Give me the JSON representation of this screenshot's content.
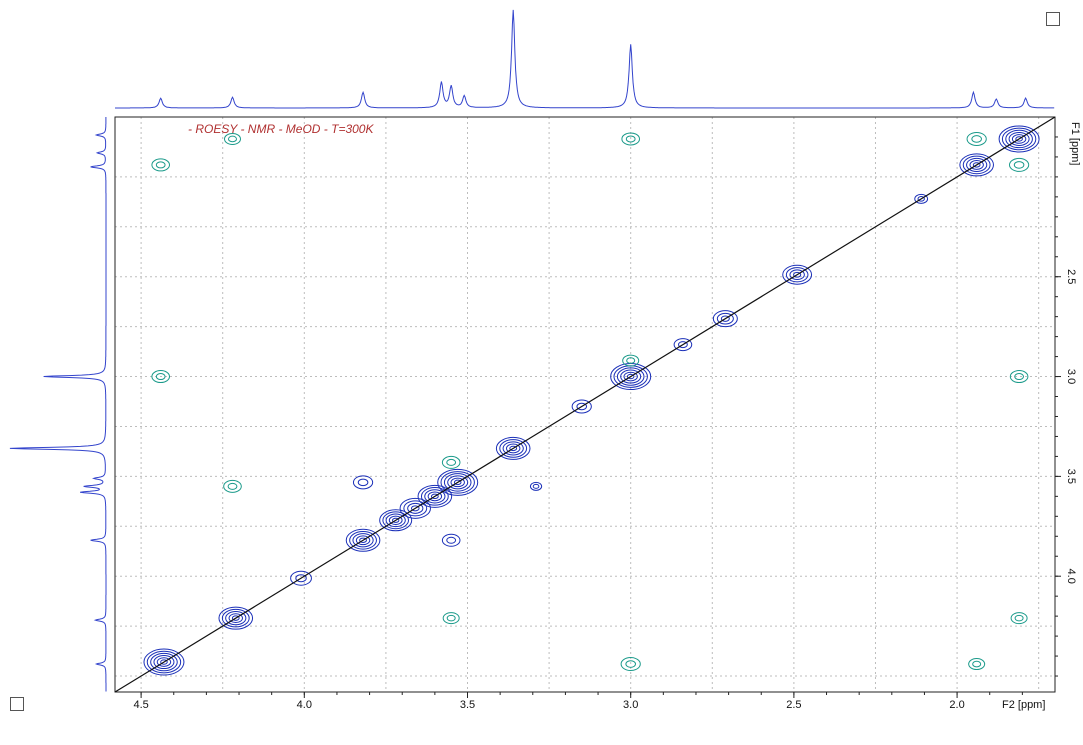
{
  "chart_data": {
    "type": "heatmap",
    "subtype": "2D NMR ROESY contour plot",
    "title": "- ROESY - NMR - MeOD - T=300K",
    "x_axis": {
      "label": "F2 [ppm]",
      "reversed": true,
      "range": [
        4.58,
        1.7
      ],
      "ticks": [
        4.5,
        4.0,
        3.5,
        3.0,
        2.5,
        2.0
      ],
      "tick_labels": [
        "4.5",
        "4.0",
        "3.5",
        "3.0",
        "2.5",
        "2.0"
      ],
      "position": "bottom"
    },
    "y_axis": {
      "label": "F1 [ppm]",
      "reversed": false,
      "range": [
        1.7,
        4.58
      ],
      "ticks": [
        2.5,
        3.0,
        3.5,
        4.0
      ],
      "tick_labels": [
        "2.5",
        "3.0",
        "3.5",
        "4.0"
      ],
      "position": "right"
    },
    "grid": true,
    "diagonal": true,
    "colors": {
      "positive": "#1a2fb8",
      "negative": "#1a9a8a",
      "spectrum": "#3344cc",
      "title": "#b03030"
    },
    "projection_peaks": [
      {
        "ppm": 4.44,
        "height": 0.1
      },
      {
        "ppm": 4.22,
        "height": 0.11
      },
      {
        "ppm": 3.82,
        "height": 0.16
      },
      {
        "ppm": 3.58,
        "height": 0.26
      },
      {
        "ppm": 3.55,
        "height": 0.22
      },
      {
        "ppm": 3.51,
        "height": 0.12
      },
      {
        "ppm": 3.36,
        "height": 1.0
      },
      {
        "ppm": 3.0,
        "height": 0.65
      },
      {
        "ppm": 1.95,
        "height": 0.16
      },
      {
        "ppm": 1.88,
        "height": 0.09
      },
      {
        "ppm": 1.79,
        "height": 0.1
      }
    ],
    "diagonal_peaks": [
      {
        "ppm": 4.43,
        "size": 1.0
      },
      {
        "ppm": 4.21,
        "size": 0.8
      },
      {
        "ppm": 4.01,
        "size": 0.4
      },
      {
        "ppm": 3.82,
        "size": 0.8
      },
      {
        "ppm": 3.72,
        "size": 0.75
      },
      {
        "ppm": 3.66,
        "size": 0.7
      },
      {
        "ppm": 3.6,
        "size": 0.8
      },
      {
        "ppm": 3.53,
        "size": 1.0
      },
      {
        "ppm": 3.36,
        "size": 0.8
      },
      {
        "ppm": 3.15,
        "size": 0.35
      },
      {
        "ppm": 3.0,
        "size": 1.0
      },
      {
        "ppm": 2.84,
        "size": 0.3
      },
      {
        "ppm": 2.71,
        "size": 0.5
      },
      {
        "ppm": 2.49,
        "size": 0.65
      },
      {
        "ppm": 2.11,
        "size": 0.15
      },
      {
        "ppm": 1.94,
        "size": 0.8
      },
      {
        "ppm": 1.81,
        "size": 1.0
      }
    ],
    "cross_peaks": [
      {
        "x": 4.44,
        "y": 1.94,
        "sign": "negative",
        "size": 0.3
      },
      {
        "x": 4.44,
        "y": 3.0,
        "sign": "negative",
        "size": 0.3
      },
      {
        "x": 4.22,
        "y": 1.81,
        "sign": "negative",
        "size": 0.25
      },
      {
        "x": 4.22,
        "y": 3.55,
        "sign": "negative",
        "size": 0.3
      },
      {
        "x": 3.82,
        "y": 3.53,
        "sign": "positive",
        "size": 0.35
      },
      {
        "x": 3.55,
        "y": 3.43,
        "sign": "negative",
        "size": 0.3
      },
      {
        "x": 3.55,
        "y": 3.82,
        "sign": "positive",
        "size": 0.3
      },
      {
        "x": 3.55,
        "y": 4.21,
        "sign": "negative",
        "size": 0.25
      },
      {
        "x": 3.0,
        "y": 1.81,
        "sign": "negative",
        "size": 0.3
      },
      {
        "x": 3.0,
        "y": 2.92,
        "sign": "negative",
        "size": 0.25
      },
      {
        "x": 3.0,
        "y": 4.44,
        "sign": "negative",
        "size": 0.35
      },
      {
        "x": 1.94,
        "y": 4.44,
        "sign": "negative",
        "size": 0.25
      },
      {
        "x": 1.81,
        "y": 3.0,
        "sign": "negative",
        "size": 0.3
      },
      {
        "x": 1.81,
        "y": 4.21,
        "sign": "negative",
        "size": 0.25
      },
      {
        "x": 1.94,
        "y": 1.81,
        "sign": "negative",
        "size": 0.35
      },
      {
        "x": 1.81,
        "y": 1.94,
        "sign": "negative",
        "size": 0.35
      },
      {
        "x": 3.29,
        "y": 3.55,
        "sign": "positive",
        "size": 0.1
      }
    ]
  }
}
